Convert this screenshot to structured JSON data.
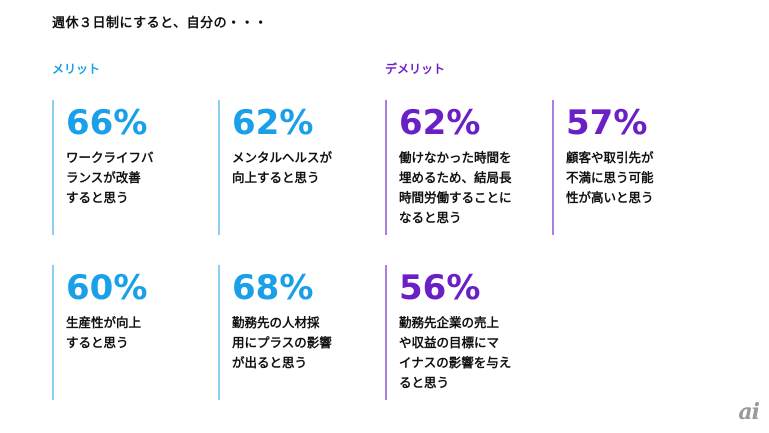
{
  "title": "週休３日制にすると、自分の・・・",
  "colors": {
    "merit": "#1aa0e8",
    "demerit": "#6b20c6",
    "merit_bar": "#8ccfee",
    "demerit_bar": "#a97fe0"
  },
  "sections": {
    "merit": {
      "label": "メリット"
    },
    "demerit": {
      "label": "デメリット"
    }
  },
  "logo": "ai",
  "chart_data": {
    "type": "table",
    "title": "週休３日制にすると、自分の・・・",
    "groups": [
      {
        "name": "メリット",
        "items": [
          {
            "value": 66,
            "label": "ワークライフバ\nランスが改善\nすると思う"
          },
          {
            "value": 62,
            "label": "メンタルヘルスが\n向上すると思う"
          },
          {
            "value": 60,
            "label": "生産性が向上\nすると思う"
          },
          {
            "value": 68,
            "label": "勤務先の人材採\n用にプラスの影響\nが出ると思う"
          }
        ]
      },
      {
        "name": "デメリット",
        "items": [
          {
            "value": 62,
            "label": "働けなかった時間を\n埋めるため、結局長\n時間労働することに\nなると思う"
          },
          {
            "value": 57,
            "label": "顧客や取引先が\n不満に思う可能\n性が高いと思う"
          },
          {
            "value": 56,
            "label": "勤務先企業の売上\nや収益の目標にマ\nイナスの影響を与え\nると思う"
          }
        ]
      }
    ],
    "display": {
      "m0": "66%",
      "m1": "62%",
      "m2": "60%",
      "m3": "68%",
      "d0": "62%",
      "d1": "57%",
      "d2": "56%"
    }
  }
}
